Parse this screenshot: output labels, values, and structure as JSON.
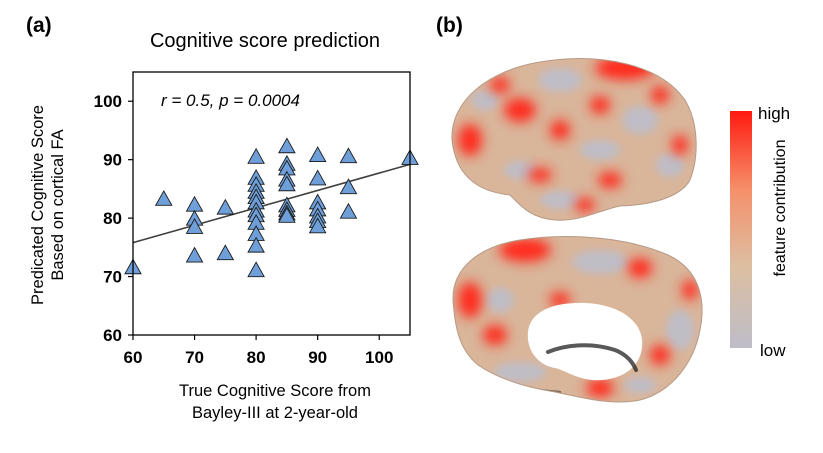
{
  "panels": {
    "a": "(a)",
    "b": "(b)"
  },
  "chart_data": {
    "type": "scatter",
    "title": "Cognitive score prediction",
    "xlabel_lines": [
      "True Cognitive Score from",
      "Bayley-III at 2-year-old"
    ],
    "ylabel_lines": [
      "Predicated Cognitive Score",
      "Based on cortical FA"
    ],
    "annotation": "r = 0.5,  p = 0.0004",
    "xlim": [
      60,
      105
    ],
    "ylim": [
      60,
      105
    ],
    "xticks": [
      60,
      70,
      80,
      90,
      100
    ],
    "yticks": [
      60,
      70,
      80,
      90,
      100
    ],
    "marker": "triangle",
    "marker_color": "#6f9fd8",
    "line_color": "#404040",
    "trend_line": {
      "x": [
        60,
        105
      ],
      "y": [
        75.8,
        89.2
      ]
    },
    "points": [
      {
        "x": 60,
        "y": 71.5
      },
      {
        "x": 65,
        "y": 83.2
      },
      {
        "x": 70,
        "y": 82.2
      },
      {
        "x": 70,
        "y": 79.8
      },
      {
        "x": 70,
        "y": 78.4
      },
      {
        "x": 70,
        "y": 73.5
      },
      {
        "x": 75,
        "y": 81.7
      },
      {
        "x": 75,
        "y": 73.9
      },
      {
        "x": 80,
        "y": 90.4
      },
      {
        "x": 80,
        "y": 86.8
      },
      {
        "x": 80,
        "y": 85.6
      },
      {
        "x": 80,
        "y": 84.4
      },
      {
        "x": 80,
        "y": 83.5
      },
      {
        "x": 80,
        "y": 82.6
      },
      {
        "x": 80,
        "y": 81.2
      },
      {
        "x": 80,
        "y": 80.4
      },
      {
        "x": 80,
        "y": 79.1
      },
      {
        "x": 80,
        "y": 77.2
      },
      {
        "x": 80,
        "y": 75.2
      },
      {
        "x": 80,
        "y": 71.0
      },
      {
        "x": 85,
        "y": 92.2
      },
      {
        "x": 85,
        "y": 89.2
      },
      {
        "x": 85,
        "y": 88.4
      },
      {
        "x": 85,
        "y": 86.5
      },
      {
        "x": 85,
        "y": 85.7
      },
      {
        "x": 85,
        "y": 82.1
      },
      {
        "x": 85,
        "y": 81.3
      },
      {
        "x": 85,
        "y": 80.7
      },
      {
        "x": 85,
        "y": 80.3
      },
      {
        "x": 90,
        "y": 90.7
      },
      {
        "x": 90,
        "y": 86.7
      },
      {
        "x": 90,
        "y": 82.6
      },
      {
        "x": 90,
        "y": 81.4
      },
      {
        "x": 90,
        "y": 80.2
      },
      {
        "x": 90,
        "y": 79.4
      },
      {
        "x": 90,
        "y": 78.5
      },
      {
        "x": 95,
        "y": 90.5
      },
      {
        "x": 95,
        "y": 85.2
      },
      {
        "x": 95,
        "y": 81.0
      },
      {
        "x": 105,
        "y": 90.2
      }
    ]
  },
  "colorbar": {
    "high_label": "high",
    "low_label": "low",
    "title": "feature contribution",
    "colors": [
      "#ff1a10",
      "#f5906a",
      "#dcbfa2",
      "#bdbdc8"
    ]
  },
  "brain": {
    "base_color": "#d9b59a",
    "hot_color": "#ff2a1a",
    "cool_color": "#bfbdc6",
    "wall_color": "#ffffff"
  }
}
